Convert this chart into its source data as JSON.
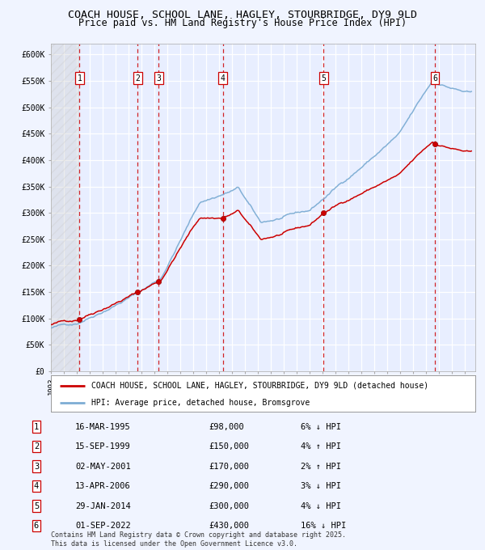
{
  "title": "COACH HOUSE, SCHOOL LANE, HAGLEY, STOURBRIDGE, DY9 9LD",
  "subtitle": "Price paid vs. HM Land Registry's House Price Index (HPI)",
  "title_fontsize": 9.5,
  "subtitle_fontsize": 8.5,
  "ylabel_ticks": [
    "£0",
    "£50K",
    "£100K",
    "£150K",
    "£200K",
    "£250K",
    "£300K",
    "£350K",
    "£400K",
    "£450K",
    "£500K",
    "£550K",
    "£600K"
  ],
  "ytick_values": [
    0,
    50000,
    100000,
    150000,
    200000,
    250000,
    300000,
    350000,
    400000,
    450000,
    500000,
    550000,
    600000
  ],
  "ylim": [
    0,
    620000
  ],
  "xlim_start": 1993.0,
  "xlim_end": 2025.8,
  "background_color": "#f0f4ff",
  "plot_bg_color": "#e8eeff",
  "grid_color": "#ffffff",
  "hpi_line_color": "#7dadd4",
  "price_line_color": "#cc0000",
  "dot_color": "#cc0000",
  "vline_color": "#cc0000",
  "legend_label_red": "COACH HOUSE, SCHOOL LANE, HAGLEY, STOURBRIDGE, DY9 9LD (detached house)",
  "legend_label_blue": "HPI: Average price, detached house, Bromsgrove",
  "transactions": [
    {
      "num": 1,
      "date_label": "16-MAR-1995",
      "price": 98000,
      "pct": "6%",
      "dir": "↓",
      "year": 1995.21
    },
    {
      "num": 2,
      "date_label": "15-SEP-1999",
      "price": 150000,
      "pct": "4%",
      "dir": "↑",
      "year": 1999.71
    },
    {
      "num": 3,
      "date_label": "02-MAY-2001",
      "price": 170000,
      "pct": "2%",
      "dir": "↑",
      "year": 2001.33
    },
    {
      "num": 4,
      "date_label": "13-APR-2006",
      "price": 290000,
      "pct": "3%",
      "dir": "↓",
      "year": 2006.28
    },
    {
      "num": 5,
      "date_label": "29-JAN-2014",
      "price": 300000,
      "pct": "4%",
      "dir": "↓",
      "year": 2014.08
    },
    {
      "num": 6,
      "date_label": "01-SEP-2022",
      "price": 430000,
      "pct": "16%",
      "dir": "↓",
      "year": 2022.67
    }
  ],
  "footnote": "Contains HM Land Registry data © Crown copyright and database right 2025.\nThis data is licensed under the Open Government Licence v3.0.",
  "hatch_region_end": 1995.21
}
